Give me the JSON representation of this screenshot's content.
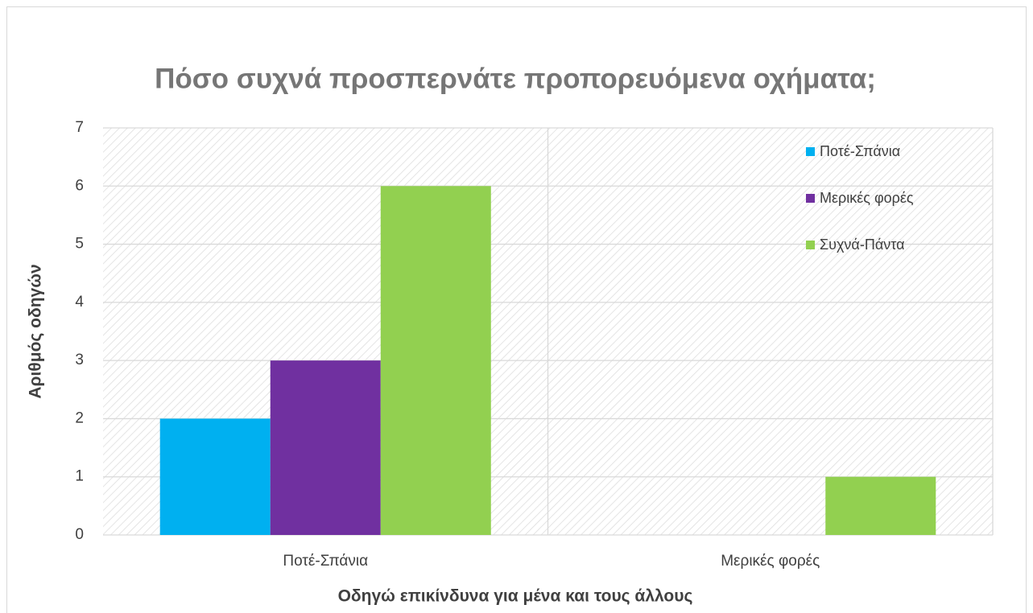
{
  "chart_data": {
    "type": "bar",
    "title": "Πόσο συχνά προσπερνάτε προπορευόμενα οχήματα;",
    "x_label": "Οδηγώ επικίνδυνα για μένα και τους άλλους",
    "y_label": "Αριθμός οδηγών",
    "categories": [
      "Ποτέ-Σπάνια",
      "Μερικές φορές"
    ],
    "series": [
      {
        "name": "Ποτέ-Σπάνια",
        "color": "#00b0f0",
        "values": [
          2,
          0
        ]
      },
      {
        "name": "Μερικές φορές",
        "color": "#7030a0",
        "values": [
          3,
          0
        ]
      },
      {
        "name": "Συχνά-Πάντα",
        "color": "#92d050",
        "values": [
          6,
          1
        ]
      }
    ],
    "ylim": [
      0,
      7
    ],
    "yticks": [
      0,
      1,
      2,
      3,
      4,
      5,
      6,
      7
    ],
    "grid": true,
    "legend": "upper right"
  }
}
